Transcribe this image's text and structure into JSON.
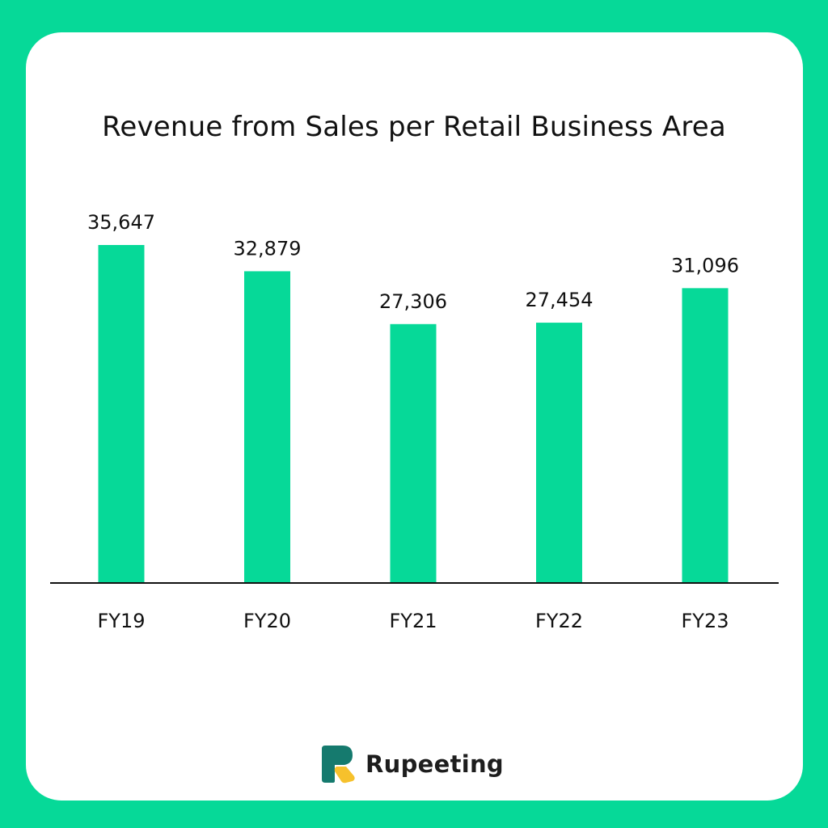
{
  "chart_data": {
    "type": "bar",
    "title": "Revenue from Sales per Retail Business Area",
    "categories": [
      "FY19",
      "FY20",
      "FY21",
      "FY22",
      "FY23"
    ],
    "values": [
      35647,
      32879,
      27306,
      27454,
      31096
    ],
    "data_labels": [
      "35,647",
      "32,879",
      "27,306",
      "27,454",
      "31,096"
    ],
    "xlabel": "",
    "ylabel": "",
    "ylim": [
      0,
      35647
    ],
    "grid": false,
    "legend": "none",
    "bar_color": "#06D998",
    "axis_color": "#111111"
  },
  "colors": {
    "background": "#06D998",
    "card": "#ffffff",
    "logo_teal": "#157a6e",
    "logo_yellow": "#f6c12c"
  },
  "brand": {
    "name": "Rupeeting",
    "logo_icon": "rupeeting-logo-icon"
  }
}
